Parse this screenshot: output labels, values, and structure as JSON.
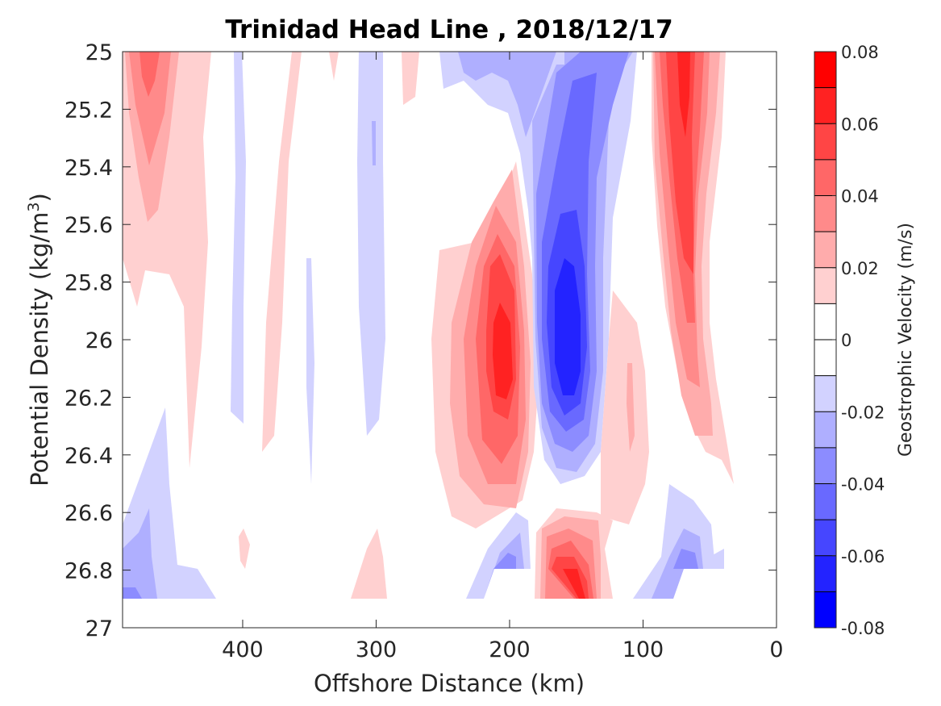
{
  "chart_data": {
    "type": "heatmap",
    "subtype": "filled-contour",
    "title": "Trinidad Head Line , 2018/12/17",
    "xlabel": "Offshore Distance (km)",
    "ylabel": "Potential Density (kg/m",
    "ylabel_superscript": "3",
    "ylabel_suffix": ")",
    "xlim": [
      490,
      0
    ],
    "x_reversed": true,
    "ylim": [
      27,
      25
    ],
    "y_reversed": true,
    "xticks": [
      400,
      300,
      200,
      100,
      0
    ],
    "yticks": [
      25,
      25.2,
      25.4,
      25.6,
      25.8,
      26,
      26.2,
      26.4,
      26.6,
      26.8,
      27
    ],
    "xtick_labels": [
      "400",
      "300",
      "200",
      "100",
      "0"
    ],
    "ytick_labels": [
      "25",
      "25.2",
      "25.4",
      "25.6",
      "25.8",
      "26",
      "26.2",
      "26.4",
      "26.6",
      "26.8",
      "27"
    ],
    "colorbar": {
      "label": "Geostrophic Velocity (m/s)",
      "range": [
        -0.08,
        0.08
      ],
      "tick_values": [
        0.08,
        0.06,
        0.04,
        0.02,
        0,
        -0.02,
        -0.04,
        -0.06,
        -0.08
      ],
      "tick_labels": [
        "0.08",
        "0.06",
        "0.04",
        "0.02",
        "0",
        "-0.02",
        "-0.04",
        "-0.06",
        "-0.08"
      ],
      "levels": [
        0.07,
        0.06,
        0.05,
        0.04,
        0.03,
        0.02,
        0.01,
        0,
        -0.01,
        -0.02,
        -0.03,
        -0.04,
        -0.05,
        -0.06,
        -0.07,
        -0.08
      ],
      "colors": [
        "#ff0000",
        "#ff2222",
        "#ff4545",
        "#ff6767",
        "#ff8a8a",
        "#ffacac",
        "#ffd0d0",
        "#ffffff",
        "#ffffff",
        "#d2d2ff",
        "#afafff",
        "#8c8cff",
        "#6969ff",
        "#4646ff",
        "#2323ff",
        "#0000ff"
      ]
    },
    "features": [
      {
        "name": "nearshore-core",
        "x": 63,
        "y": 25.7,
        "peak": 0.06,
        "x_halfwidth": 30,
        "y_range": [
          25.0,
          26.45
        ]
      },
      {
        "name": "offshore-core",
        "x": 470,
        "y": 25.2,
        "peak": 0.04,
        "x_halfwidth": 28,
        "y_range": [
          25.0,
          25.9
        ]
      },
      {
        "name": "positive-jet",
        "x": 205,
        "y": 26.05,
        "peak": 0.065,
        "x_halfwidth": 45,
        "y_range": [
          25.4,
          26.65
        ]
      },
      {
        "name": "negative-jet",
        "x": 155,
        "y": 25.95,
        "peak": -0.07,
        "x_halfwidth": 45,
        "y_range": [
          25.0,
          26.45
        ]
      },
      {
        "name": "bottom-positive",
        "x": 155,
        "y": 26.85,
        "peak": 0.07,
        "x_halfwidth": 25,
        "y_range": [
          26.6,
          26.9
        ]
      },
      {
        "name": "bottom-negative",
        "x": 205,
        "y": 26.8,
        "peak": -0.04,
        "x_halfwidth": 20,
        "y_range": [
          26.6,
          26.9
        ]
      }
    ]
  }
}
